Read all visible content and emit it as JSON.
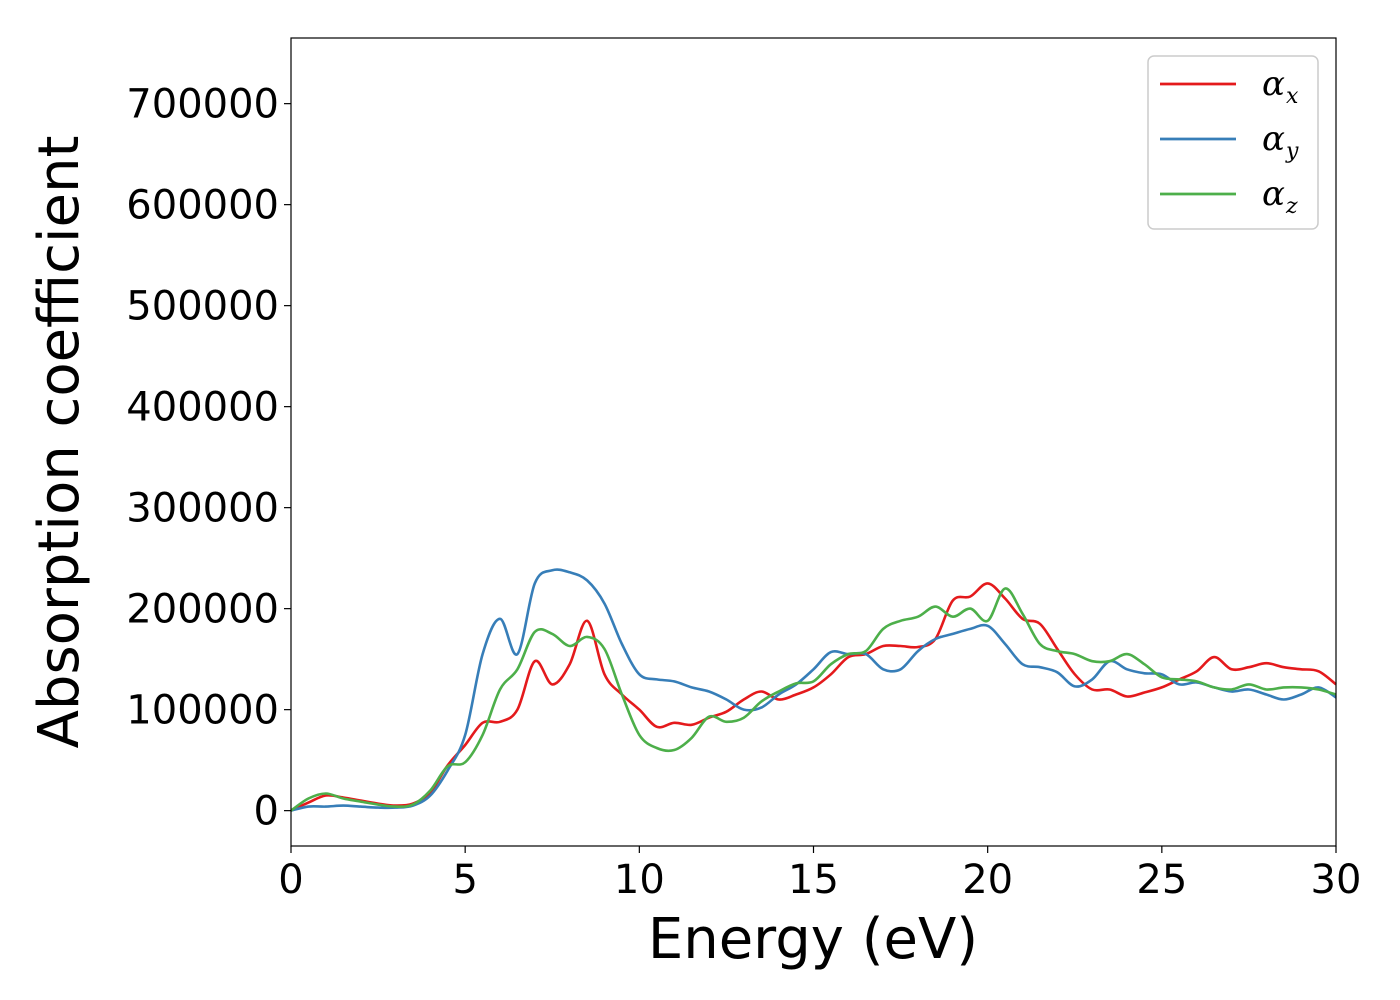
{
  "chart_data": {
    "type": "line",
    "xlabel": "Energy (eV)",
    "ylabel": "Absorption coefficient",
    "xlim": [
      0,
      30
    ],
    "ylim": [
      -35000,
      765000
    ],
    "xticks": [
      0,
      5,
      10,
      15,
      20,
      25,
      30
    ],
    "yticks": [
      0,
      100000,
      200000,
      300000,
      400000,
      500000,
      600000,
      700000
    ],
    "legend_position": "top-right",
    "grid": false,
    "series": [
      {
        "name": "α_x",
        "symbol": "α",
        "subscript": "x",
        "color": "#e41a1c",
        "x": [
          0,
          0.5,
          1,
          1.5,
          2,
          2.5,
          3,
          3.5,
          4,
          4.5,
          5,
          5.5,
          6,
          6.5,
          7,
          7.5,
          8,
          8.5,
          9,
          9.5,
          10,
          10.5,
          11,
          11.5,
          12,
          12.5,
          13,
          13.5,
          14,
          14.5,
          15,
          15.5,
          16,
          16.5,
          17,
          17.5,
          18,
          18.5,
          19,
          19.5,
          20,
          20.5,
          21,
          21.5,
          22,
          22.5,
          23,
          23.5,
          24,
          24.5,
          25,
          25.5,
          26,
          26.5,
          27,
          27.5,
          28,
          28.5,
          29,
          29.5,
          30
        ],
        "y": [
          0,
          8000,
          15000,
          13000,
          10000,
          7000,
          5000,
          7000,
          18000,
          45000,
          65000,
          87000,
          88000,
          100000,
          148000,
          125000,
          145000,
          188000,
          135000,
          115000,
          100000,
          83000,
          87000,
          85000,
          92000,
          98000,
          110000,
          118000,
          110000,
          115000,
          122000,
          135000,
          152000,
          155000,
          163000,
          163000,
          162000,
          170000,
          208000,
          212000,
          225000,
          210000,
          190000,
          185000,
          160000,
          135000,
          120000,
          120000,
          113000,
          117000,
          122000,
          130000,
          138000,
          152000,
          140000,
          142000,
          146000,
          142000,
          140000,
          138000,
          125000
        ]
      },
      {
        "name": "α_y",
        "symbol": "α",
        "subscript": "y",
        "color": "#377eb8",
        "x": [
          0,
          0.5,
          1,
          1.5,
          2,
          2.5,
          3,
          3.5,
          4,
          4.5,
          5,
          5.5,
          6,
          6.5,
          7,
          7.5,
          8,
          8.5,
          9,
          9.5,
          10,
          10.5,
          11,
          11.5,
          12,
          12.5,
          13,
          13.5,
          14,
          14.5,
          15,
          15.5,
          16,
          16.5,
          17,
          17.5,
          18,
          18.5,
          19,
          19.5,
          20,
          20.5,
          21,
          21.5,
          22,
          22.5,
          23,
          23.5,
          24,
          24.5,
          25,
          25.5,
          26,
          26.5,
          27,
          27.5,
          28,
          28.5,
          29,
          29.5,
          30
        ],
        "y": [
          0,
          4000,
          4000,
          5000,
          4000,
          3000,
          3000,
          5000,
          15000,
          40000,
          75000,
          155000,
          190000,
          155000,
          225000,
          238000,
          236000,
          228000,
          205000,
          165000,
          135000,
          130000,
          128000,
          122000,
          118000,
          110000,
          100000,
          102000,
          115000,
          125000,
          140000,
          157000,
          155000,
          155000,
          140000,
          140000,
          158000,
          170000,
          175000,
          180000,
          183000,
          165000,
          145000,
          142000,
          137000,
          123000,
          130000,
          148000,
          140000,
          136000,
          135000,
          125000,
          127000,
          122000,
          118000,
          120000,
          115000,
          110000,
          115000,
          122000,
          112000
        ]
      },
      {
        "name": "α_z",
        "symbol": "α",
        "subscript": "z",
        "color": "#4daf4a",
        "x": [
          0,
          0.5,
          1,
          1.5,
          2,
          2.5,
          3,
          3.5,
          4,
          4.5,
          5,
          5.5,
          6,
          6.5,
          7,
          7.5,
          8,
          8.5,
          9,
          9.5,
          10,
          10.5,
          11,
          11.5,
          12,
          12.5,
          13,
          13.5,
          14,
          14.5,
          15,
          15.5,
          16,
          16.5,
          17,
          17.5,
          18,
          18.5,
          19,
          19.5,
          20,
          20.5,
          21,
          21.5,
          22,
          22.5,
          23,
          23.5,
          24,
          24.5,
          25,
          25.5,
          26,
          26.5,
          27,
          27.5,
          28,
          28.5,
          29,
          29.5,
          30
        ],
        "y": [
          0,
          12000,
          17000,
          12000,
          9000,
          6000,
          4000,
          6000,
          20000,
          44000,
          48000,
          75000,
          120000,
          140000,
          177000,
          175000,
          163000,
          172000,
          160000,
          115000,
          75000,
          62000,
          60000,
          72000,
          93000,
          88000,
          92000,
          108000,
          118000,
          126000,
          128000,
          145000,
          155000,
          158000,
          180000,
          188000,
          192000,
          202000,
          192000,
          200000,
          188000,
          220000,
          195000,
          165000,
          158000,
          155000,
          148000,
          148000,
          155000,
          145000,
          132000,
          130000,
          128000,
          122000,
          120000,
          125000,
          120000,
          122000,
          122000,
          120000,
          115000
        ]
      }
    ]
  }
}
